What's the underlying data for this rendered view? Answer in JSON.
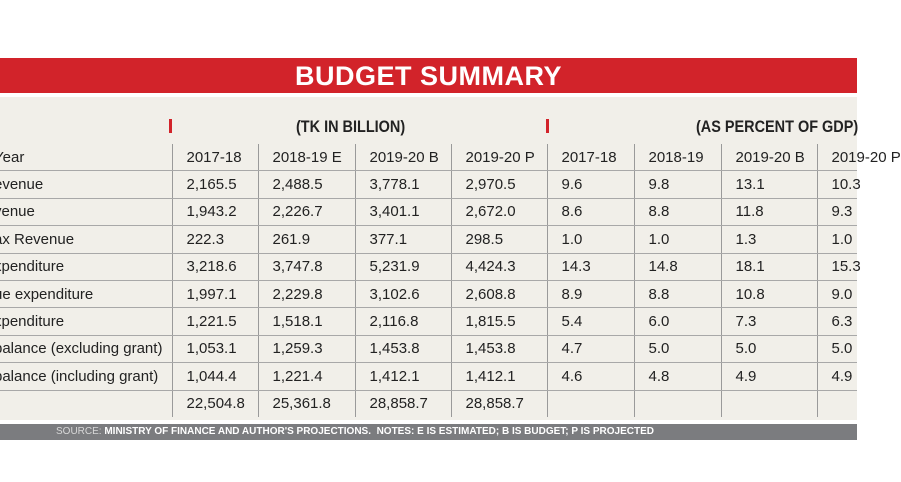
{
  "title": "BUDGET SUMMARY",
  "unit_left": "(TK IN BILLION)",
  "unit_right": "(AS PERCENT OF GDP)",
  "accent_color": "#d2232a",
  "columns": [
    "Year",
    "2017-18",
    "2018-19 E",
    "2019-20 B",
    "2019-20 P",
    "2017-18",
    "2018-19",
    "2019-20 B",
    "2019-20 P"
  ],
  "rows": [
    [
      "evenue",
      "2,165.5",
      "2,488.5",
      "3,778.1",
      "2,970.5",
      "9.6",
      "9.8",
      "13.1",
      "10.3"
    ],
    [
      "venue",
      "1,943.2",
      "2,226.7",
      "3,401.1",
      "2,672.0",
      "8.6",
      "8.8",
      "11.8",
      "9.3"
    ],
    [
      "ax Revenue",
      "222.3",
      "261.9",
      "377.1",
      "298.5",
      "1.0",
      "1.0",
      "1.3",
      "1.0"
    ],
    [
      "xpenditure",
      "3,218.6",
      "3,747.8",
      "5,231.9",
      "4,424.3",
      "14.3",
      "14.8",
      "18.1",
      "15.3"
    ],
    [
      "ue expenditure",
      "1,997.1",
      "2,229.8",
      "3,102.6",
      "2,608.8",
      "8.9",
      "8.8",
      "10.8",
      "9.0"
    ],
    [
      "xpenditure",
      "1,221.5",
      "1,518.1",
      "2,116.8",
      "1,815.5",
      "5.4",
      "6.0",
      "7.3",
      "6.3"
    ],
    [
      "balance (excluding grant)",
      "1,053.1",
      "1,259.3",
      "1,453.8",
      "1,453.8",
      "4.7",
      "5.0",
      "5.0",
      "5.0"
    ],
    [
      "balance (including grant)",
      "1,044.4",
      "1,221.4",
      "1,412.1",
      "1,412.1",
      "4.6",
      "4.8",
      "4.9",
      "4.9"
    ],
    [
      "",
      "22,504.8",
      "25,361.8",
      "28,858.7",
      "28,858.7",
      "",
      "",
      "",
      ""
    ]
  ],
  "footer": {
    "source_label": "SOURCE:",
    "source_text": "MINISTRY OF FINANCE AND AUTHOR'S PROJECTIONS.",
    "notes": "NOTES:  E IS ESTIMATED; B IS BUDGET; P IS PROJECTED"
  }
}
